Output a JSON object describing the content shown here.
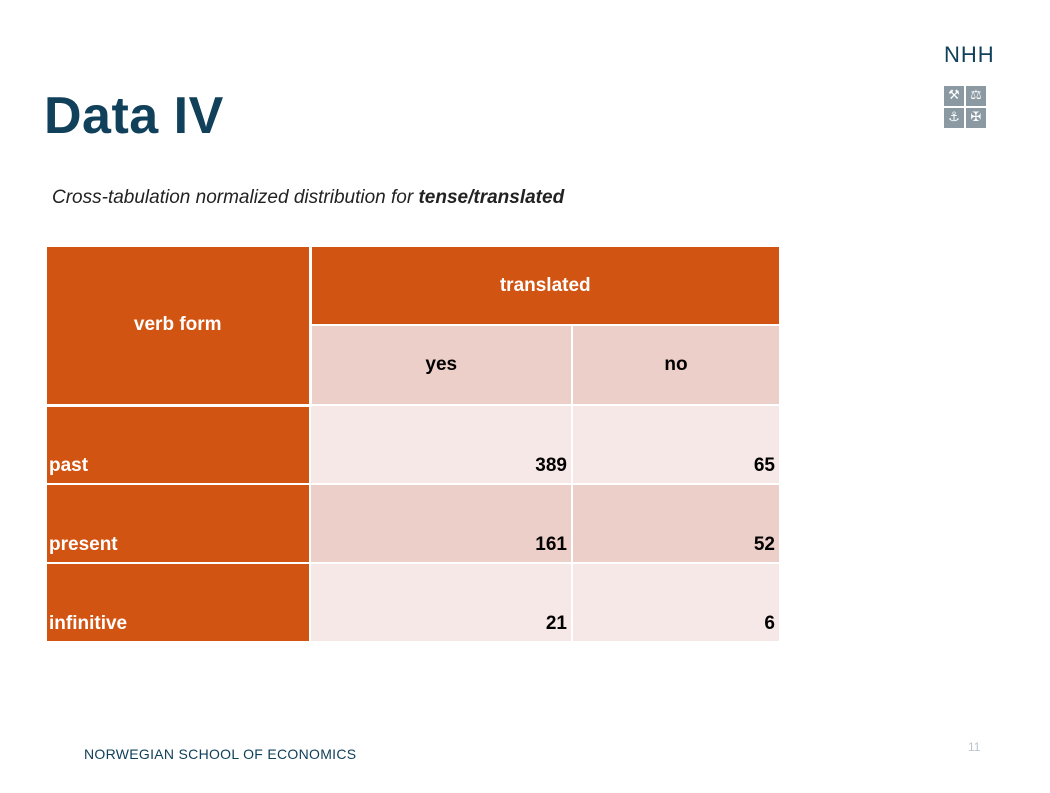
{
  "slide": {
    "title": "Data IV",
    "subtitle_prefix": "Cross-tabulation normalized distribution for ",
    "subtitle_emph": "tense/translated",
    "footer": "NORWEGIAN SCHOOL OF ECONOMICS",
    "page_number": "11"
  },
  "logo": {
    "text": "NHH",
    "icons": [
      "hammer-pick-icon",
      "scales-icon",
      "anchor-icon",
      "ship-wheel-icon"
    ]
  },
  "table": {
    "corner_header": "verb form",
    "group_header": "translated",
    "columns": [
      "yes",
      "no"
    ],
    "rows": [
      {
        "label": "past",
        "values": [
          "389",
          "65"
        ]
      },
      {
        "label": "present",
        "values": [
          "161",
          "52"
        ]
      },
      {
        "label": "infinitive",
        "values": [
          "21",
          "6"
        ]
      }
    ]
  },
  "colors": {
    "header_orange": "#d25412",
    "title_blue": "#10405a",
    "cell_light": "#f6e8e6",
    "cell_dark": "#edcfca"
  }
}
